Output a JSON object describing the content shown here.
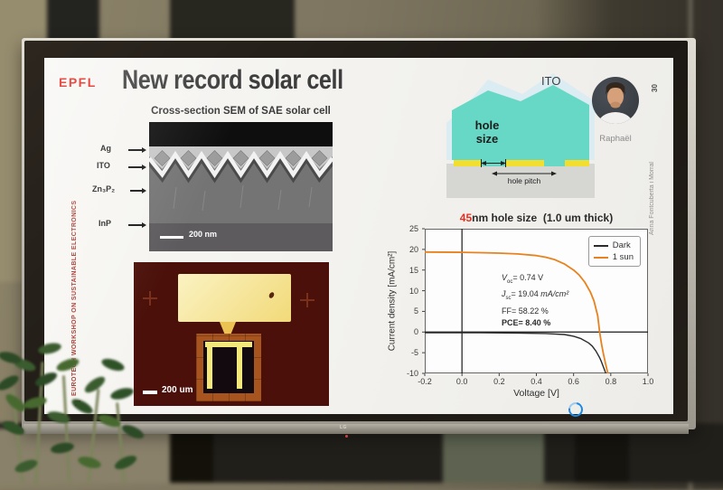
{
  "photo": {
    "monitor_logo": "LG"
  },
  "slide": {
    "logo_text": "EPFL",
    "title": "New record solar cell",
    "page_number": "30",
    "left_banner": "EUROTECH WORKSHOP ON SUSTAINABLE ELECTRONICS",
    "right_credit": "Anna Fontcuberta i Morral",
    "sem_figure": {
      "caption": "Cross-section SEM of SAE solar cell",
      "layer_labels": [
        "Ag",
        "ITO",
        "Zn₃P₂",
        "InP"
      ],
      "scale_bar": "200 nm"
    },
    "optical_figure": {
      "scale_bar": "200 um"
    },
    "schematic": {
      "ito_label": "ITO",
      "hole_size_line1": "hole",
      "hole_size_line2": "size",
      "hole_pitch_label": "hole pitch"
    },
    "person": {
      "name": "Raphaël"
    }
  },
  "chart_data": {
    "type": "line",
    "title_highlight": "45",
    "title_rest": "nm hole size  (1.0 um thick)",
    "xlabel": "Voltage [V]",
    "ylabel": "Current density [mA/cm²]",
    "xlim": [
      -0.2,
      1.0
    ],
    "ylim": [
      -10,
      25
    ],
    "xticks": [
      -0.2,
      0.0,
      0.2,
      0.4,
      0.6,
      0.8,
      1.0
    ],
    "yticks": [
      -10,
      -5,
      0,
      5,
      10,
      15,
      20,
      25
    ],
    "grid": false,
    "legend_position": "upper right",
    "series": [
      {
        "name": "Dark",
        "color": "#2b2b2b",
        "points": [
          [
            -0.2,
            -0.15
          ],
          [
            0.1,
            -0.18
          ],
          [
            0.3,
            -0.25
          ],
          [
            0.45,
            -0.35
          ],
          [
            0.55,
            -0.6
          ],
          [
            0.6,
            -1.0
          ],
          [
            0.64,
            -1.6
          ],
          [
            0.68,
            -2.6
          ],
          [
            0.7,
            -3.4
          ],
          [
            0.72,
            -4.6
          ],
          [
            0.74,
            -6.2
          ],
          [
            0.75,
            -7.2
          ],
          [
            0.76,
            -8.4
          ],
          [
            0.77,
            -9.6
          ],
          [
            0.773,
            -10
          ]
        ]
      },
      {
        "name": "1 sun",
        "color": "#e8821e",
        "points": [
          [
            -0.2,
            19.35
          ],
          [
            0.0,
            19.3
          ],
          [
            0.1,
            19.2
          ],
          [
            0.2,
            19.1
          ],
          [
            0.3,
            18.9
          ],
          [
            0.4,
            18.5
          ],
          [
            0.45,
            18.1
          ],
          [
            0.5,
            17.5
          ],
          [
            0.55,
            16.5
          ],
          [
            0.6,
            15.0
          ],
          [
            0.63,
            13.8
          ],
          [
            0.66,
            12.1
          ],
          [
            0.69,
            9.7
          ],
          [
            0.71,
            7.5
          ],
          [
            0.73,
            3.9
          ],
          [
            0.74,
            0.0
          ],
          [
            0.75,
            -2.8
          ],
          [
            0.76,
            -5.2
          ],
          [
            0.77,
            -7.3
          ],
          [
            0.78,
            -9.2
          ],
          [
            0.785,
            -10
          ]
        ]
      }
    ],
    "annotations": {
      "voc_sym": "V",
      "voc_sub": "oc",
      "voc_val": "= 0.74 V",
      "jsc_sym": "J",
      "jsc_sub": "sc",
      "jsc_val": "= 19.04 ",
      "jsc_unit": "mA/cm²",
      "ff": "FF= 58.22 %",
      "pce": "PCE= 8.40 %"
    }
  }
}
